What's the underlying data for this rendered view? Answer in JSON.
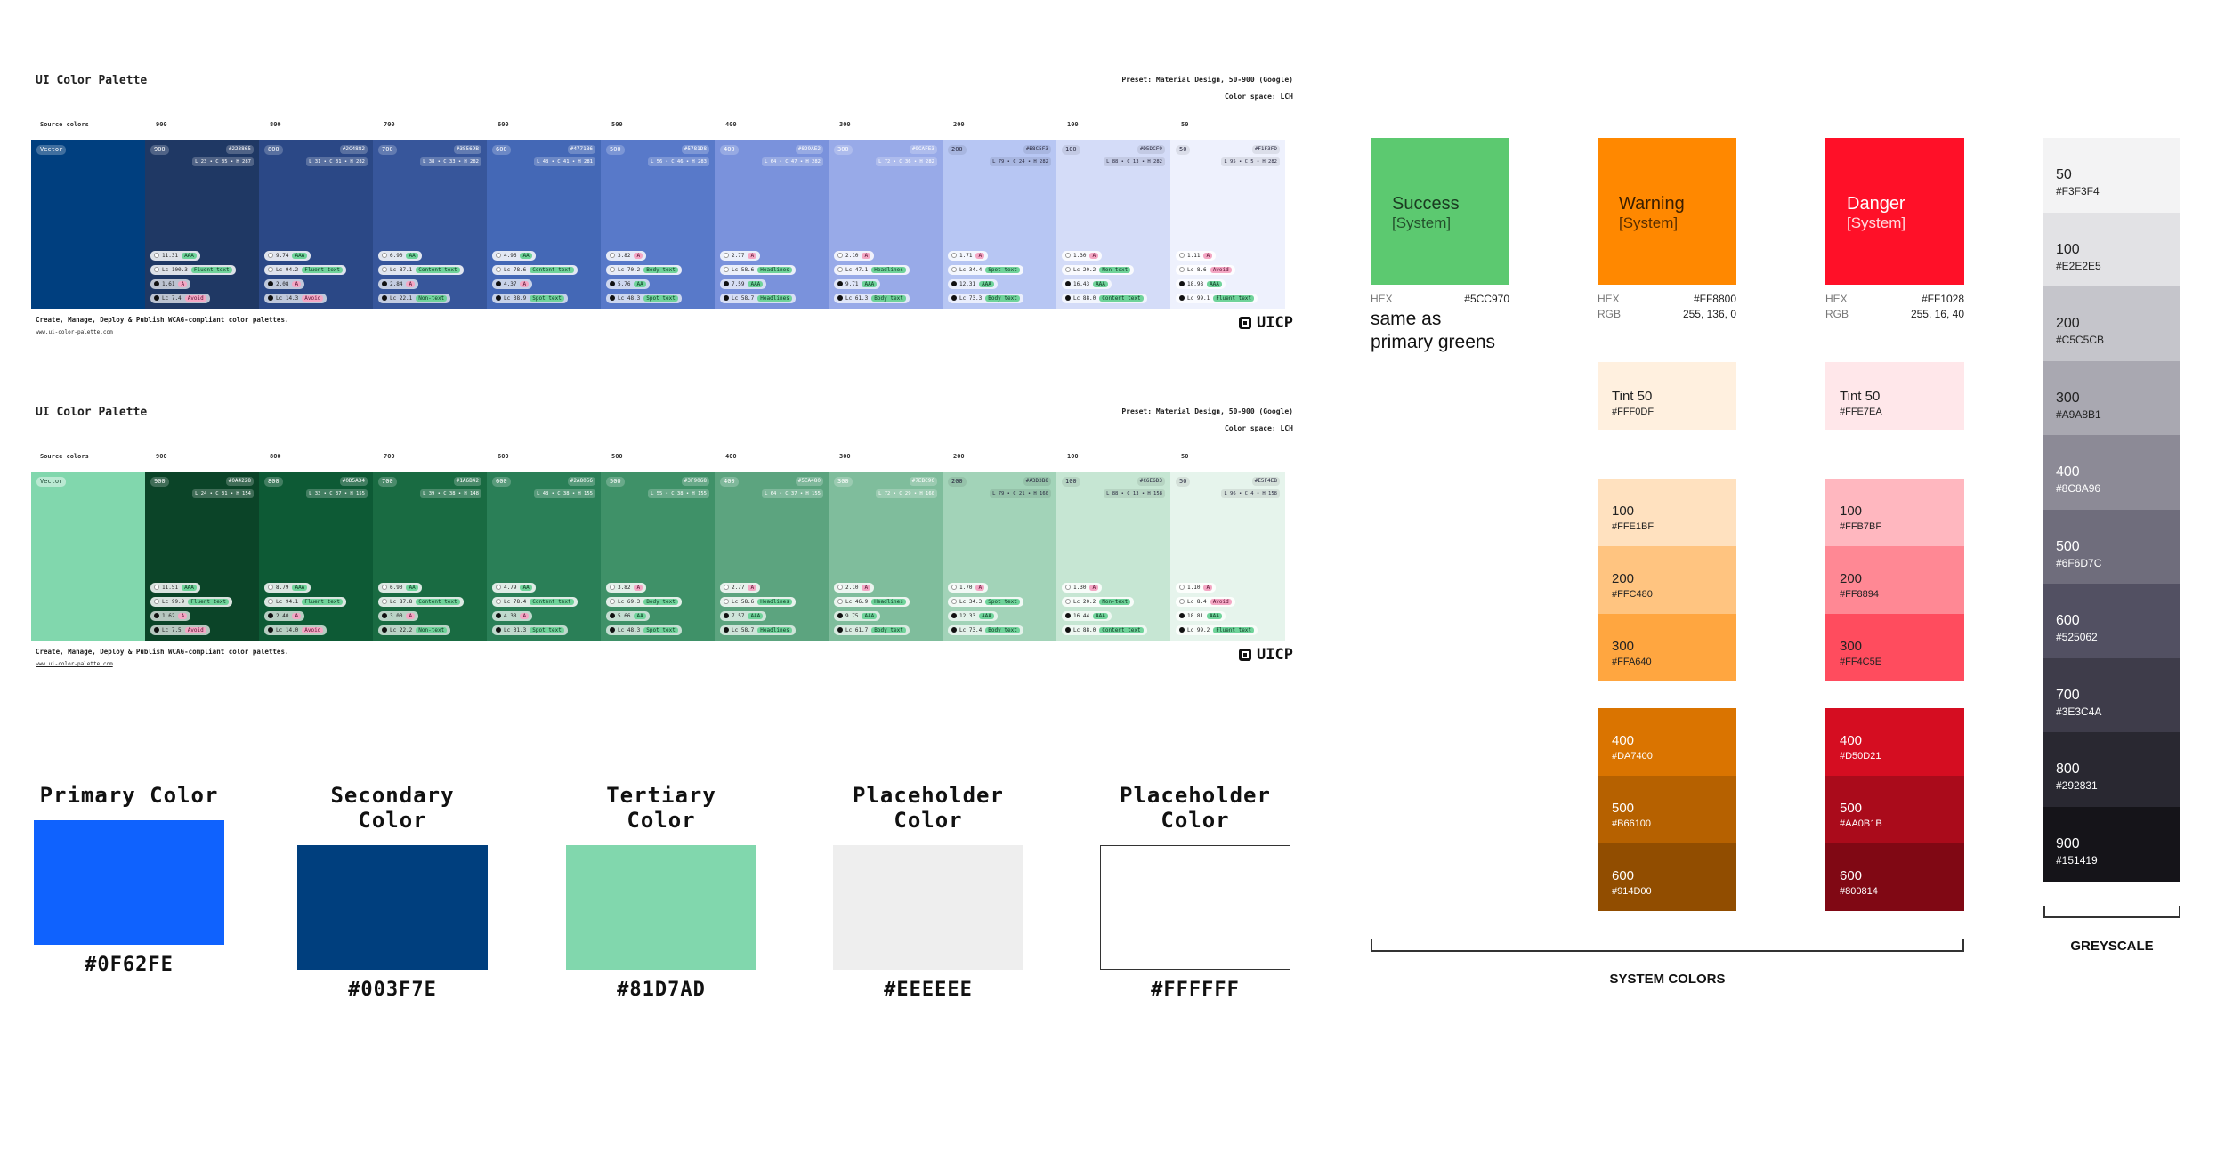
{
  "palettes": [
    {
      "title": "UI Color Palette",
      "preset": "Preset: Material Design, 50-900 (Google)",
      "color_space": "Color space: LCH",
      "source_label": "Source colors",
      "source_chip": "Vector",
      "source_color": "#003F7F",
      "headers": [
        "900",
        "800",
        "700",
        "600",
        "500",
        "400",
        "300",
        "200",
        "100",
        "50"
      ],
      "swatches": [
        {
          "bg": "#1F3864",
          "dark": false,
          "hex": "#223865",
          "lch": "L 23 • C 35 • H 287",
          "m": [
            [
              "11.31",
              "AAA"
            ],
            [
              "Lc 100.3",
              "Fluent text"
            ],
            [
              "1.61",
              "A"
            ],
            [
              "Lc 7.4",
              "Avoid"
            ]
          ]
        },
        {
          "bg": "#2B4886",
          "dark": false,
          "hex": "#2C4882",
          "lch": "L 31 • C 31 • H 282",
          "m": [
            [
              "9.74",
              "AAA"
            ],
            [
              "Lc 94.2",
              "Fluent text"
            ],
            [
              "2.08",
              "A"
            ],
            [
              "Lc 14.3",
              "Avoid"
            ]
          ]
        },
        {
          "bg": "#37569B",
          "dark": false,
          "hex": "#38569B",
          "lch": "L 38 • C 33 • H 282",
          "m": [
            [
              "6.90",
              "AA"
            ],
            [
              "Lc 87.1",
              "Content text"
            ],
            [
              "2.84",
              "A"
            ],
            [
              "Lc 22.1",
              "Non-text"
            ]
          ]
        },
        {
          "bg": "#4468B6",
          "dark": false,
          "hex": "#4771B6",
          "lch": "L 48 • C 41 • H 281",
          "m": [
            [
              "4.96",
              "AA"
            ],
            [
              "Lc 78.6",
              "Content text"
            ],
            [
              "4.37",
              "A"
            ],
            [
              "Lc 38.9",
              "Spot text"
            ]
          ]
        },
        {
          "bg": "#5879C9",
          "dark": false,
          "hex": "#5781D8",
          "lch": "L 56 • C 46 • H 283",
          "m": [
            [
              "3.82",
              "A"
            ],
            [
              "Lc 70.2",
              "Body text"
            ],
            [
              "5.76",
              "AA"
            ],
            [
              "Lc 48.3",
              "Spot text"
            ]
          ]
        },
        {
          "bg": "#7A92DC",
          "dark": false,
          "hex": "#829AE2",
          "lch": "L 64 • C 47 • H 282",
          "m": [
            [
              "2.77",
              "A"
            ],
            [
              "Lc 58.6",
              "Headlines"
            ],
            [
              "7.59",
              "AAA"
            ],
            [
              "Lc 58.7",
              "Headlines"
            ]
          ]
        },
        {
          "bg": "#98AAE8",
          "dark": false,
          "hex": "#9CAFE3",
          "lch": "L 72 • C 36 • H 282",
          "m": [
            [
              "2.10",
              "A"
            ],
            [
              "Lc 47.1",
              "Headlines"
            ],
            [
              "9.71",
              "AAA"
            ],
            [
              "Lc 61.3",
              "Body text"
            ]
          ]
        },
        {
          "bg": "#B7C6F3",
          "dark": true,
          "hex": "#B8C5F3",
          "lch": "L 79 • C 24 • H 282",
          "m": [
            [
              "1.71",
              "A"
            ],
            [
              "Lc 34.4",
              "Spot text"
            ],
            [
              "12.31",
              "AAA"
            ],
            [
              "Lc 73.3",
              "Body text"
            ]
          ]
        },
        {
          "bg": "#D4DCF8",
          "dark": true,
          "hex": "#D5DCF9",
          "lch": "L 88 • C 13 • H 282",
          "m": [
            [
              "1.30",
              "A"
            ],
            [
              "Lc 20.2",
              "Non-text"
            ],
            [
              "16.43",
              "AAA"
            ],
            [
              "Lc 88.0",
              "Content text"
            ]
          ]
        },
        {
          "bg": "#EEF1FD",
          "dark": true,
          "hex": "#F1F3FD",
          "lch": "L 95 • C 5 • H 282",
          "m": [
            [
              "1.11",
              "A"
            ],
            [
              "Lc 8.6",
              "Avoid"
            ],
            [
              "18.98",
              "AAA"
            ],
            [
              "Lc 99.1",
              "Fluent text"
            ]
          ]
        }
      ],
      "tagline": "Create, Manage, Deploy & Publish WCAG-compliant color palettes.",
      "url": "www.ui-color-palette.com",
      "brand": "UICP"
    },
    {
      "title": "UI Color Palette",
      "preset": "Preset: Material Design, 50-900 (Google)",
      "color_space": "Color space: LCH",
      "source_label": "Source colors",
      "source_chip": "Vector",
      "source_color": "#81D7AD",
      "headers": [
        "900",
        "800",
        "700",
        "600",
        "500",
        "400",
        "300",
        "200",
        "100",
        "50"
      ],
      "swatches": [
        {
          "bg": "#0B4428",
          "dark": false,
          "hex": "#0A4228",
          "lch": "L 24 • C 31 • H 154",
          "m": [
            [
              "11.51",
              "AAA"
            ],
            [
              "Lc 99.9",
              "Fluent text"
            ],
            [
              "1.62",
              "A"
            ],
            [
              "Lc 7.5",
              "Avoid"
            ]
          ]
        },
        {
          "bg": "#0D5A35",
          "dark": false,
          "hex": "#0D5A34",
          "lch": "L 33 • C 37 • H 155",
          "m": [
            [
              "8.79",
              "AAA"
            ],
            [
              "Lc 94.1",
              "Fluent text"
            ],
            [
              "2.40",
              "A"
            ],
            [
              "Lc 14.0",
              "Avoid"
            ]
          ]
        },
        {
          "bg": "#196B42",
          "dark": false,
          "hex": "#1A6B42",
          "lch": "L 39 • C 38 • H 148",
          "m": [
            [
              "6.90",
              "AA"
            ],
            [
              "Lc 87.8",
              "Content text"
            ],
            [
              "3.00",
              "A"
            ],
            [
              "Lc 22.2",
              "Non-text"
            ]
          ]
        },
        {
          "bg": "#2A7F57",
          "dark": false,
          "hex": "#2A8056",
          "lch": "L 48 • C 38 • H 155",
          "m": [
            [
              "4.79",
              "AA"
            ],
            [
              "Lc 78.4",
              "Content text"
            ],
            [
              "4.38",
              "A"
            ],
            [
              "Lc 31.3",
              "Spot text"
            ]
          ]
        },
        {
          "bg": "#3F9168",
          "dark": false,
          "hex": "#3F9068",
          "lch": "L 55 • C 38 • H 155",
          "m": [
            [
              "3.82",
              "A"
            ],
            [
              "Lc 69.3",
              "Body text"
            ],
            [
              "5.66",
              "AA"
            ],
            [
              "Lc 48.3",
              "Spot text"
            ]
          ]
        },
        {
          "bg": "#5CA47F",
          "dark": false,
          "hex": "#5EA480",
          "lch": "L 64 • C 37 • H 155",
          "m": [
            [
              "2.77",
              "A"
            ],
            [
              "Lc 58.6",
              "Headlines"
            ],
            [
              "7.57",
              "AAA"
            ],
            [
              "Lc 58.7",
              "Headlines"
            ]
          ]
        },
        {
          "bg": "#7FBD9C",
          "dark": false,
          "hex": "#7EBC9C",
          "lch": "L 72 • C 29 • H 160",
          "m": [
            [
              "2.10",
              "A"
            ],
            [
              "Lc 46.9",
              "Headlines"
            ],
            [
              "9.75",
              "AAA"
            ],
            [
              "Lc 61.7",
              "Body text"
            ]
          ]
        },
        {
          "bg": "#A2D3B8",
          "dark": true,
          "hex": "#A3D3B8",
          "lch": "L 79 • C 21 • H 160",
          "m": [
            [
              "1.70",
              "A"
            ],
            [
              "Lc 34.3",
              "Spot text"
            ],
            [
              "12.33",
              "AAA"
            ],
            [
              "Lc 73.4",
              "Body text"
            ]
          ]
        },
        {
          "bg": "#C6E6D3",
          "dark": true,
          "hex": "#C6E6D3",
          "lch": "L 88 • C 13 • H 158",
          "m": [
            [
              "1.30",
              "A"
            ],
            [
              "Lc 20.2",
              "Non-text"
            ],
            [
              "16.44",
              "AAA"
            ],
            [
              "Lc 88.0",
              "Content text"
            ]
          ]
        },
        {
          "bg": "#E6F4EC",
          "dark": true,
          "hex": "#E5F4EB",
          "lch": "L 96 • C 4 • H 158",
          "m": [
            [
              "1.10",
              "A"
            ],
            [
              "Lc 8.4",
              "Avoid"
            ],
            [
              "18.81",
              "AAA"
            ],
            [
              "Lc 99.2",
              "Fluent text"
            ]
          ]
        }
      ],
      "tagline": "Create, Manage, Deploy & Publish WCAG-compliant color palettes.",
      "url": "www.ui-color-palette.com",
      "brand": "UICP"
    }
  ],
  "brand_colors": [
    {
      "label": "Primary Color",
      "hex": "#0F62FE",
      "color": "#0F62FE"
    },
    {
      "label": "Secondary Color",
      "hex": "#003F7E",
      "color": "#003F7E"
    },
    {
      "label": "Tertiary Color",
      "hex": "#81D7AD",
      "color": "#81D7AD"
    },
    {
      "label": "Placeholder Color",
      "hex": "#EEEEEE",
      "color": "#EEEEEE"
    },
    {
      "label": "Placeholder Color",
      "hex": "#FFFFFF",
      "color": "#FFFFFF"
    }
  ],
  "system": {
    "success": {
      "name": "Success",
      "sub": "[System]",
      "color": "#5CC970",
      "hex_label": "HEX",
      "hex": "#5CC970",
      "note_1": "same as",
      "note_2": "primary greens"
    },
    "warning": {
      "name": "Warning",
      "sub": "[System]",
      "color": "#FF8800",
      "hex_label": "HEX",
      "hex": "#FF8800",
      "rgb_label": "RGB",
      "rgb": "255, 136, 0",
      "tints": [
        {
          "name": "Tint 50",
          "hex": "#FFF0DF",
          "text": "#222222"
        },
        {
          "name": "100",
          "hex": "#FFE1BF",
          "text": "#222222"
        },
        {
          "name": "200",
          "hex": "#FFC480",
          "text": "#222222"
        },
        {
          "name": "300",
          "hex": "#FFA640",
          "text": "#222222"
        },
        {
          "name": "400",
          "hex": "#DA7400",
          "text": "#ffffff"
        },
        {
          "name": "500",
          "hex": "#B66100",
          "text": "#ffffff"
        },
        {
          "name": "600",
          "hex": "#914D00",
          "text": "#ffffff"
        }
      ]
    },
    "danger": {
      "name": "Danger",
      "sub": "[System]",
      "color": "#FF1028",
      "hex_label": "HEX",
      "hex": "#FF1028",
      "rgb_label": "RGB",
      "rgb": "255, 16, 40",
      "tints": [
        {
          "name": "Tint 50",
          "hex": "#FFE7EA",
          "text": "#222222"
        },
        {
          "name": "100",
          "hex": "#FFB7BF",
          "text": "#222222"
        },
        {
          "name": "200",
          "hex": "#FF8894",
          "text": "#222222"
        },
        {
          "name": "300",
          "hex": "#FF4C5E",
          "text": "#222222"
        },
        {
          "name": "400",
          "hex": "#D50D21",
          "text": "#ffffff"
        },
        {
          "name": "500",
          "hex": "#AA0B1B",
          "text": "#ffffff"
        },
        {
          "name": "600",
          "hex": "#800814",
          "text": "#ffffff"
        }
      ]
    },
    "caption": "SYSTEM COLORS"
  },
  "greyscale": {
    "caption": "GREYSCALE",
    "steps": [
      {
        "name": "50",
        "hex": "#F3F3F4"
      },
      {
        "name": "100",
        "hex": "#E2E2E5"
      },
      {
        "name": "200",
        "hex": "#C5C5CB"
      },
      {
        "name": "300",
        "hex": "#A9A8B1"
      },
      {
        "name": "400",
        "hex": "#8C8A96"
      },
      {
        "name": "500",
        "hex": "#6F6D7C"
      },
      {
        "name": "600",
        "hex": "#525062"
      },
      {
        "name": "700",
        "hex": "#3E3C4A"
      },
      {
        "name": "800",
        "hex": "#292831"
      },
      {
        "name": "900",
        "hex": "#151419"
      }
    ]
  }
}
